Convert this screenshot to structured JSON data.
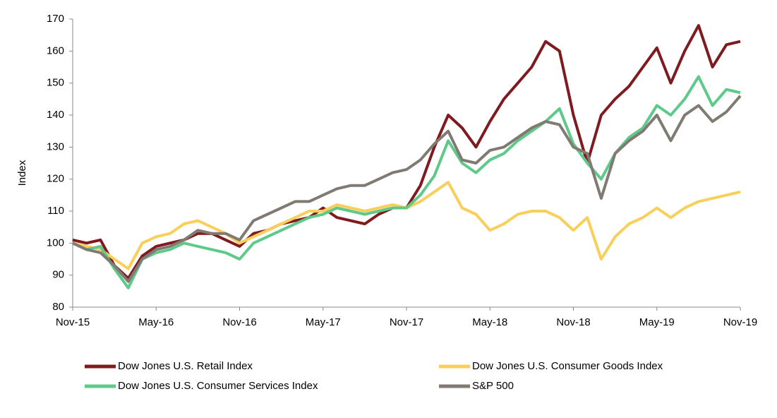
{
  "chart_data": {
    "type": "line",
    "ylabel": "Index",
    "categories": [
      "Nov-15",
      null,
      null,
      null,
      null,
      null,
      "May-16",
      null,
      null,
      null,
      null,
      null,
      "Nov-16",
      null,
      null,
      null,
      null,
      null,
      "May-17",
      null,
      null,
      null,
      null,
      null,
      "Nov-17",
      null,
      null,
      null,
      null,
      null,
      "May-18",
      null,
      null,
      null,
      null,
      null,
      "Nov-18",
      null,
      null,
      null,
      null,
      null,
      "May-19",
      null,
      null,
      null,
      null,
      null,
      "Nov-19"
    ],
    "series": [
      {
        "name": "Dow Jones U.S. Retail Index",
        "color": "#7f1a1f",
        "values": [
          101,
          100,
          101,
          93,
          89,
          96,
          99,
          100,
          101,
          103,
          103,
          101,
          99,
          103,
          104,
          106,
          107,
          108,
          111,
          108,
          107,
          106,
          109,
          111,
          111,
          118,
          130,
          140,
          136,
          130,
          138,
          145,
          150,
          155,
          163,
          160,
          140,
          125,
          140,
          145,
          149,
          155,
          161,
          150,
          160,
          168,
          155,
          162,
          163
        ]
      },
      {
        "name": "Dow Jones U.S. Consumer Goods Index",
        "color": "#f9cf5c",
        "values": [
          100,
          99,
          98,
          95,
          92,
          100,
          102,
          103,
          106,
          107,
          105,
          103,
          100,
          102,
          104,
          106,
          108,
          110,
          110,
          112,
          111,
          110,
          111,
          112,
          111,
          113,
          116,
          119,
          111,
          109,
          104,
          106,
          109,
          110,
          110,
          108,
          104,
          108,
          95,
          102,
          106,
          108,
          111,
          108,
          111,
          113,
          114,
          115,
          116
        ]
      },
      {
        "name": "Dow Jones U.S. Consumer Services Index",
        "color": "#5fc98a",
        "values": [
          100,
          98,
          99,
          92,
          86,
          95,
          97,
          98,
          100,
          99,
          98,
          97,
          95,
          100,
          102,
          104,
          106,
          108,
          109,
          111,
          110,
          109,
          110,
          111,
          111,
          115,
          121,
          132,
          125,
          122,
          126,
          128,
          132,
          135,
          138,
          142,
          131,
          125,
          120,
          128,
          133,
          136,
          143,
          140,
          145,
          152,
          143,
          148,
          147
        ]
      },
      {
        "name": "S&P 500",
        "color": "#807a73",
        "values": [
          100,
          98,
          97,
          93,
          88,
          95,
          98,
          99,
          101,
          104,
          103,
          103,
          101,
          107,
          109,
          111,
          113,
          113,
          115,
          117,
          118,
          118,
          120,
          122,
          123,
          126,
          131,
          135,
          126,
          125,
          129,
          130,
          133,
          136,
          138,
          137,
          130,
          128,
          114,
          128,
          132,
          135,
          140,
          132,
          140,
          143,
          138,
          141,
          146
        ]
      }
    ],
    "ylim": [
      80,
      170
    ],
    "yticks": [
      80,
      90,
      100,
      110,
      120,
      130,
      140,
      150,
      160,
      170
    ],
    "grid": false
  }
}
